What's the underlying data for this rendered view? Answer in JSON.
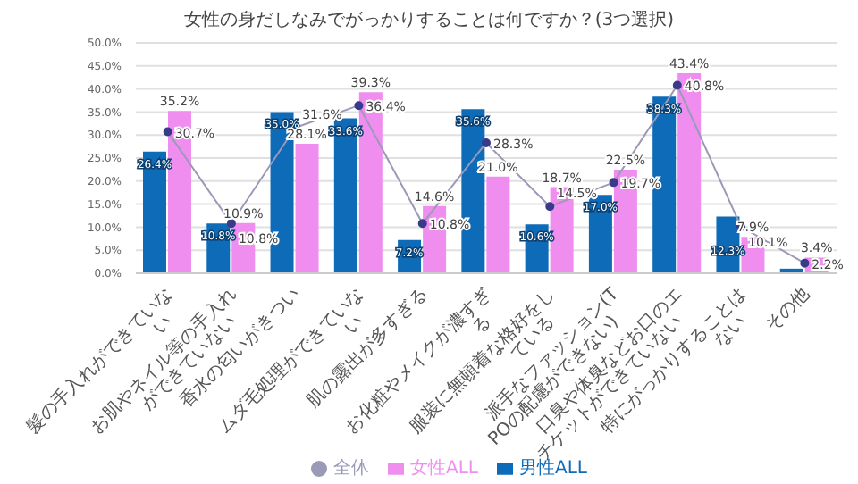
{
  "chart_data": {
    "type": "bar",
    "title": "女性の身だしなみでがっかりすることは何ですか？(3つ選択)",
    "categories": [
      "髪の手入れができていない",
      "お肌やネイル等の手入れができていない",
      "香水の匂いがきつい",
      "ムダ毛処理ができていない",
      "肌の露出が多すぎる",
      "お化粧やメイクが濃すぎる",
      "服装に無頓着な格好をしている",
      "派手なファッション(TPOの配慮ができない)",
      "口臭や体臭などお口のエチケットができていない",
      "特にがっかりすることはない",
      "その他"
    ],
    "series": [
      {
        "name": "男性ALL",
        "color": "#0e6bb8",
        "values": [
          26.4,
          10.8,
          35.0,
          33.6,
          7.2,
          35.6,
          10.6,
          17.0,
          38.3,
          12.3,
          1.0
        ],
        "value_labels": [
          "26.4%",
          "10.8%",
          "35.0%",
          "33.6%",
          "7.2%",
          "35.6%",
          "10.6%",
          "17.0%",
          "38.3%",
          "12.3%",
          null
        ]
      },
      {
        "name": "女性ALL",
        "color": "#f08ef0",
        "values": [
          35.2,
          10.9,
          28.1,
          39.3,
          14.6,
          21.0,
          18.7,
          22.5,
          43.4,
          7.9,
          3.4
        ],
        "value_labels": [
          "35.2%",
          "10.9%",
          "28.1%",
          "39.3%",
          "14.6%",
          "21.0%",
          "18.7%",
          "22.5%",
          "43.4%",
          "7.9%",
          "3.4%"
        ]
      },
      {
        "name": "全体",
        "type": "line",
        "color": "#9a9ab8",
        "values": [
          30.7,
          10.8,
          31.6,
          36.4,
          10.8,
          28.3,
          14.5,
          19.7,
          40.8,
          10.1,
          2.2
        ],
        "value_labels": [
          "30.7%",
          "10.8%",
          "31.6%",
          "36.4%",
          "10.8%",
          "28.3%",
          "14.5%",
          "19.7%",
          "40.8%",
          "10.1%",
          "2.2%"
        ]
      }
    ],
    "ylim": [
      0,
      50
    ],
    "yticks": [
      {
        "value": 0,
        "label": "0.0%"
      },
      {
        "value": 5,
        "label": "5.0%"
      },
      {
        "value": 10,
        "label": "10.0%"
      },
      {
        "value": 15,
        "label": "15.0%"
      },
      {
        "value": 20,
        "label": "20.0%"
      },
      {
        "value": 25,
        "label": "25.0%"
      },
      {
        "value": 30,
        "label": "30.0%"
      },
      {
        "value": 35,
        "label": "35.0%"
      },
      {
        "value": 40,
        "label": "40.0%"
      },
      {
        "value": 45,
        "label": "45.0%"
      },
      {
        "value": 50,
        "label": "50.0%"
      }
    ],
    "grid": "y",
    "legend": "bottom",
    "marker": "circle"
  }
}
